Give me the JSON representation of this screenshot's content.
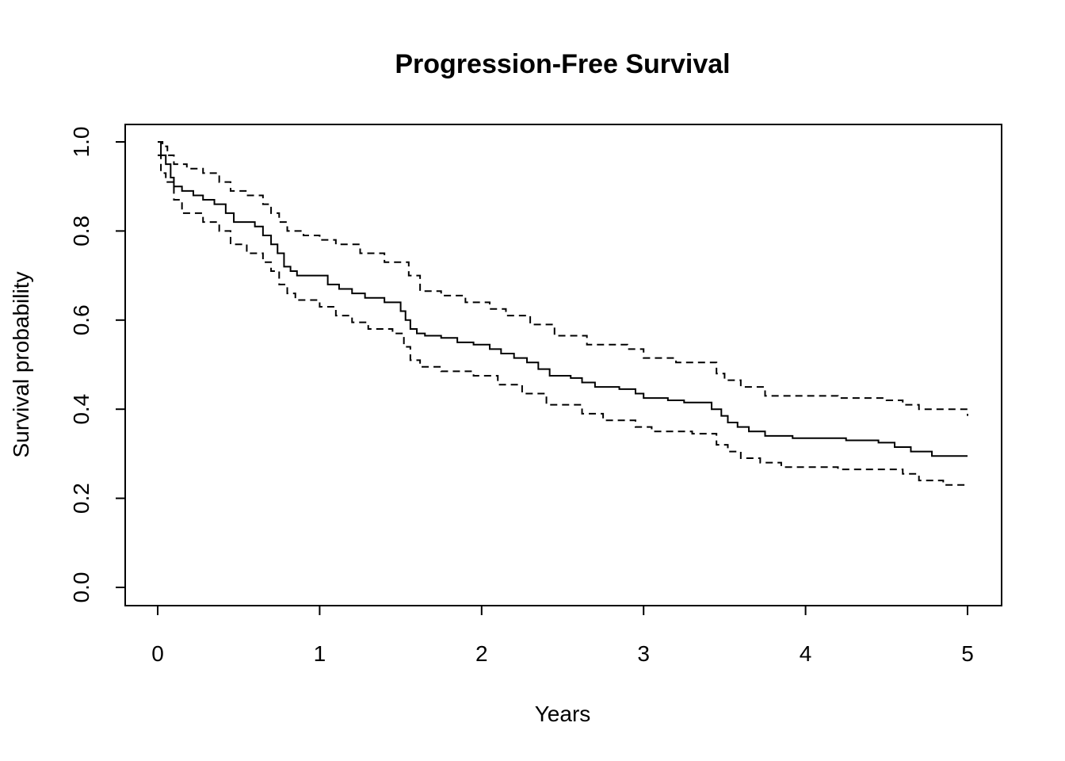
{
  "chart_data": {
    "type": "line",
    "title": "Progression-Free Survival",
    "xlabel": "Years",
    "ylabel": "Survival probability",
    "xlim": [
      0,
      5
    ],
    "ylim": [
      0,
      1
    ],
    "x_ticks": [
      "0",
      "1",
      "2",
      "3",
      "4",
      "5"
    ],
    "y_ticks": [
      "0.0",
      "0.2",
      "0.4",
      "0.6",
      "0.8",
      "1.0"
    ],
    "grid": false,
    "legend": "none",
    "series": [
      {
        "style": "solid",
        "step": true,
        "x": [
          0.0,
          0.02,
          0.05,
          0.08,
          0.1,
          0.15,
          0.22,
          0.28,
          0.35,
          0.42,
          0.47,
          0.6,
          0.65,
          0.7,
          0.74,
          0.78,
          0.82,
          0.86,
          0.9,
          1.05,
          1.12,
          1.2,
          1.28,
          1.4,
          1.5,
          1.53,
          1.56,
          1.6,
          1.65,
          1.75,
          1.85,
          1.95,
          2.05,
          2.12,
          2.2,
          2.28,
          2.35,
          2.42,
          2.55,
          2.62,
          2.7,
          2.85,
          2.95,
          3.0,
          3.15,
          3.25,
          3.42,
          3.48,
          3.52,
          3.58,
          3.65,
          3.75,
          3.92,
          4.1,
          4.25,
          4.45,
          4.55,
          4.65,
          4.78,
          5.0
        ],
        "y": [
          1.0,
          0.97,
          0.95,
          0.92,
          0.9,
          0.89,
          0.88,
          0.87,
          0.86,
          0.84,
          0.82,
          0.81,
          0.79,
          0.77,
          0.75,
          0.72,
          0.71,
          0.7,
          0.7,
          0.68,
          0.67,
          0.66,
          0.65,
          0.64,
          0.62,
          0.6,
          0.58,
          0.57,
          0.565,
          0.56,
          0.55,
          0.545,
          0.535,
          0.525,
          0.515,
          0.505,
          0.49,
          0.475,
          0.47,
          0.46,
          0.45,
          0.445,
          0.435,
          0.425,
          0.42,
          0.415,
          0.4,
          0.385,
          0.37,
          0.36,
          0.35,
          0.34,
          0.335,
          0.335,
          0.33,
          0.325,
          0.315,
          0.305,
          0.295,
          0.295
        ]
      },
      {
        "style": "dashed",
        "step": true,
        "x": [
          0.0,
          0.03,
          0.06,
          0.1,
          0.18,
          0.28,
          0.38,
          0.45,
          0.55,
          0.65,
          0.7,
          0.75,
          0.8,
          0.9,
          1.0,
          1.1,
          1.25,
          1.4,
          1.55,
          1.62,
          1.75,
          1.9,
          2.05,
          2.15,
          2.3,
          2.45,
          2.65,
          2.9,
          3.0,
          3.2,
          3.45,
          3.5,
          3.6,
          3.75,
          4.2,
          4.5,
          4.6,
          4.7,
          5.0
        ],
        "y": [
          1.0,
          0.99,
          0.97,
          0.95,
          0.94,
          0.93,
          0.91,
          0.89,
          0.88,
          0.86,
          0.84,
          0.82,
          0.8,
          0.79,
          0.78,
          0.77,
          0.75,
          0.73,
          0.7,
          0.665,
          0.655,
          0.64,
          0.625,
          0.61,
          0.59,
          0.565,
          0.545,
          0.535,
          0.515,
          0.505,
          0.48,
          0.465,
          0.45,
          0.43,
          0.425,
          0.42,
          0.41,
          0.4,
          0.385
        ]
      },
      {
        "style": "dashed",
        "step": true,
        "x": [
          0.0,
          0.02,
          0.05,
          0.1,
          0.15,
          0.28,
          0.38,
          0.45,
          0.55,
          0.65,
          0.7,
          0.75,
          0.8,
          0.85,
          1.0,
          1.1,
          1.2,
          1.3,
          1.45,
          1.52,
          1.56,
          1.62,
          1.75,
          1.95,
          2.1,
          2.25,
          2.4,
          2.62,
          2.75,
          2.95,
          3.05,
          3.3,
          3.45,
          3.52,
          3.6,
          3.72,
          3.85,
          4.2,
          4.6,
          4.7,
          4.85,
          5.0
        ],
        "y": [
          0.97,
          0.93,
          0.91,
          0.87,
          0.84,
          0.82,
          0.8,
          0.77,
          0.75,
          0.73,
          0.71,
          0.68,
          0.66,
          0.645,
          0.63,
          0.61,
          0.595,
          0.58,
          0.57,
          0.54,
          0.51,
          0.495,
          0.485,
          0.475,
          0.455,
          0.435,
          0.41,
          0.39,
          0.375,
          0.36,
          0.35,
          0.345,
          0.32,
          0.305,
          0.29,
          0.28,
          0.27,
          0.265,
          0.255,
          0.24,
          0.23,
          0.23
        ]
      }
    ]
  }
}
